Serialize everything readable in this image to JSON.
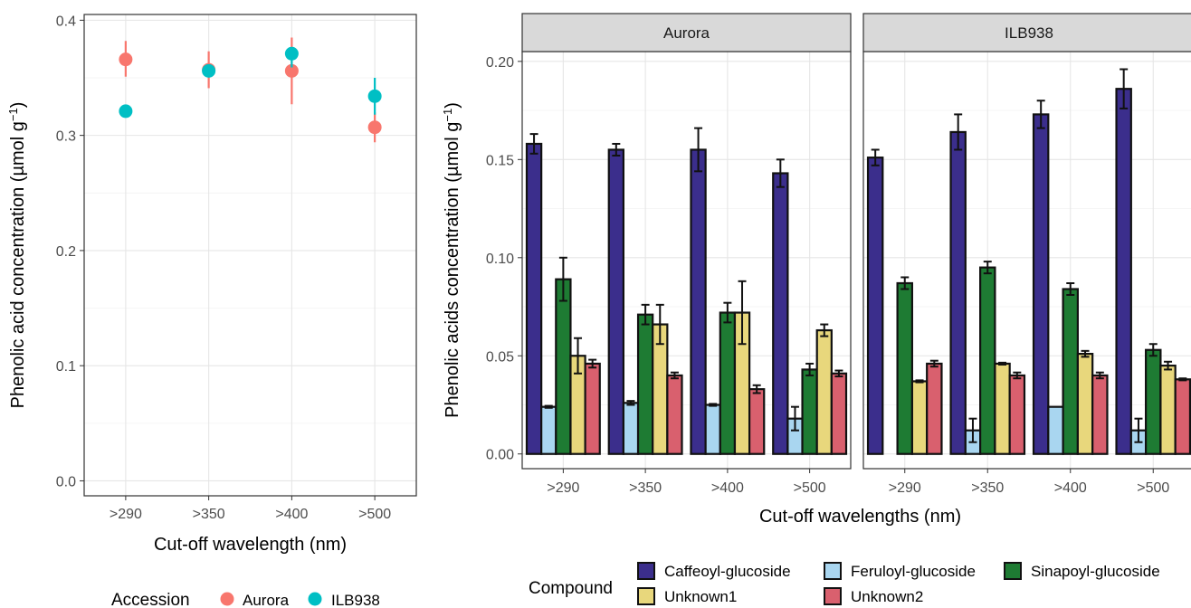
{
  "chart_data": [
    {
      "type": "scatter",
      "xlabel": "Cut-off wavelength (nm)",
      "ylabel": "Phenolic acid concentration (µmol g⁻¹)",
      "ylabel_main": "Phenolic acid concentration (µmol g",
      "ylabel_sup": "−1",
      "ylabel_end": ")",
      "categories": [
        ">290",
        ">350",
        ">400",
        ">500"
      ],
      "yticks": [
        "0.0",
        "0.1",
        "0.2",
        "0.3",
        "0.4"
      ],
      "ylim": [
        -0.013,
        0.405
      ],
      "grid": true,
      "legend": {
        "title": "Accession",
        "position": "bottom"
      },
      "series": [
        {
          "name": "Aurora",
          "color": "#F8766D",
          "values": [
            0.366,
            0.357,
            0.356,
            0.307
          ],
          "err_low": [
            0.351,
            0.341,
            0.327,
            0.294
          ],
          "err_high": [
            0.382,
            0.373,
            0.385,
            0.32
          ]
        },
        {
          "name": "ILB938",
          "color": "#00BFC4",
          "values": [
            0.321,
            0.356,
            0.371,
            0.334
          ],
          "err_low": [
            0.321,
            0.356,
            0.359,
            0.318
          ],
          "err_high": [
            0.321,
            0.356,
            0.371,
            0.35
          ]
        }
      ]
    },
    {
      "type": "bar",
      "xlabel": "Cut-off wavelengths (nm)",
      "ylabel": "Phenolic acids concentration (µmol g⁻¹)",
      "ylabel_main": "Phenolic acids concentration (µmol g",
      "ylabel_sup": "−1",
      "ylabel_end": ")",
      "categories": [
        ">290",
        ">350",
        ">400",
        ">500"
      ],
      "yticks": [
        "0.00",
        "0.05",
        "0.10",
        "0.15",
        "0.20"
      ],
      "ylim": [
        -0.0075,
        0.205
      ],
      "grid": true,
      "facets": [
        "Aurora",
        "ILB938"
      ],
      "legend": {
        "title": "Compound",
        "position": "bottom"
      },
      "series_names": [
        "Caffeoyl-glucoside",
        "Feruloyl-glucoside",
        "Sinapoyl-glucoside",
        "Unknown1",
        "Unknown2"
      ],
      "series_colors": [
        "#3B2E8C",
        "#A9D6F0",
        "#1E7B33",
        "#E8D77C",
        "#D9606E"
      ],
      "data": {
        "Aurora": {
          "values": [
            [
              0.158,
              0.024,
              0.089,
              0.05,
              0.046
            ],
            [
              0.155,
              0.026,
              0.071,
              0.066,
              0.04
            ],
            [
              0.155,
              0.025,
              0.072,
              0.072,
              0.033
            ],
            [
              0.143,
              0.018,
              0.043,
              0.063,
              0.041
            ]
          ],
          "errors": [
            [
              0.005,
              0.0005,
              0.011,
              0.009,
              0.002
            ],
            [
              0.003,
              0.001,
              0.005,
              0.01,
              0.0015
            ],
            [
              0.011,
              0.0005,
              0.005,
              0.016,
              0.002
            ],
            [
              0.007,
              0.006,
              0.003,
              0.003,
              0.0015
            ]
          ]
        },
        "ILB938": {
          "values": [
            [
              0.151,
              0.0,
              0.087,
              0.037,
              0.046
            ],
            [
              0.164,
              0.012,
              0.095,
              0.046,
              0.04
            ],
            [
              0.173,
              0.024,
              0.084,
              0.051,
              0.04
            ],
            [
              0.186,
              0.012,
              0.053,
              0.045,
              0.038
            ]
          ],
          "errors": [
            [
              0.004,
              0.0,
              0.003,
              0.0005,
              0.0015
            ],
            [
              0.009,
              0.006,
              0.003,
              0.0005,
              0.0015
            ],
            [
              0.007,
              0.0,
              0.003,
              0.0015,
              0.0015
            ],
            [
              0.01,
              0.006,
              0.003,
              0.002,
              0.0005
            ]
          ]
        }
      }
    }
  ]
}
